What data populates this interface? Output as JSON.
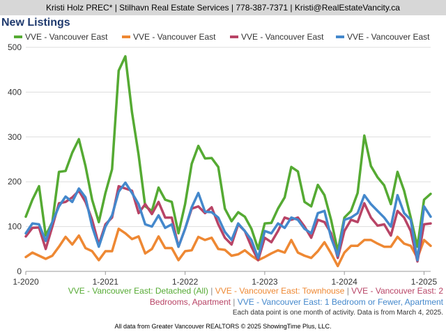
{
  "header": {
    "contact": "Kristi Holz PREC* | Stilhavn Real Estate Services | 778-387-7371 | Kristi@RealEstateVancity.ca"
  },
  "footer": {
    "note": "Each data point is one month of activity. Data is from March 4, 2025.",
    "credit": "All data from Greater Vancouver REALTORS © 2025 ShowingTime Plus, LLC.",
    "desc_line1": [
      {
        "text": "VVE - Vancouver East: Detached (All)",
        "color": "#55aa33"
      },
      {
        "text": " | ",
        "color": "#888888"
      },
      {
        "text": "VVE - Vancouver East: Townhouse",
        "color": "#ee8833"
      },
      {
        "text": " | ",
        "color": "#888888"
      },
      {
        "text": "VVE - Vancouver East: 2",
        "color": "#b84466"
      }
    ],
    "desc_line2": [
      {
        "text": "Bedrooms, Apartment",
        "color": "#b84466"
      },
      {
        "text": " | ",
        "color": "#888888"
      },
      {
        "text": "VVE - Vancouver East: 1 Bedroom or Fewer, Apartment",
        "color": "#4488cc"
      }
    ]
  },
  "chart_data": {
    "type": "line",
    "title": "New Listings",
    "xlabel": "",
    "ylabel": "",
    "ylim": [
      0,
      500
    ],
    "yticks": [
      0,
      100,
      200,
      300,
      400,
      500
    ],
    "x_start": "2020-01",
    "xticks": [
      {
        "label": "1-2020",
        "index": 0
      },
      {
        "label": "1-2021",
        "index": 12
      },
      {
        "label": "1-2022",
        "index": 24
      },
      {
        "label": "1-2023",
        "index": 36
      },
      {
        "label": "1-2024",
        "index": 48
      },
      {
        "label": "1-2025",
        "index": 60
      }
    ],
    "grid": true,
    "legend": "top",
    "series": [
      {
        "name": "VVE - Vancouver East",
        "color": "#55aa33",
        "values": [
          122,
          160,
          190,
          80,
          110,
          222,
          224,
          265,
          295,
          235,
          160,
          110,
          175,
          228,
          448,
          480,
          355,
          260,
          145,
          135,
          187,
          160,
          155,
          85,
          150,
          240,
          280,
          252,
          253,
          233,
          140,
          112,
          132,
          122,
          95,
          50,
          107,
          108,
          140,
          165,
          233,
          223,
          155,
          145,
          193,
          170,
          115,
          45,
          120,
          135,
          175,
          303,
          235,
          210,
          192,
          150,
          222,
          180,
          120,
          55,
          160,
          173
        ]
      },
      {
        "name": "VVE - Vancouver East",
        "color": "#ee8833",
        "values": [
          32,
          42,
          35,
          28,
          35,
          55,
          77,
          60,
          80,
          52,
          45,
          25,
          45,
          45,
          95,
          85,
          72,
          78,
          40,
          50,
          78,
          52,
          52,
          25,
          45,
          47,
          77,
          70,
          75,
          50,
          48,
          35,
          38,
          47,
          35,
          25,
          32,
          40,
          47,
          42,
          70,
          42,
          35,
          30,
          45,
          65,
          40,
          12,
          42,
          57,
          57,
          70,
          70,
          62,
          55,
          55,
          77,
          62,
          57,
          30,
          70,
          57
        ]
      },
      {
        "name": "VVE - Vancouver East",
        "color": "#b84466",
        "values": [
          78,
          97,
          98,
          50,
          100,
          152,
          155,
          165,
          180,
          155,
          115,
          60,
          105,
          120,
          190,
          185,
          180,
          130,
          150,
          128,
          155,
          120,
          120,
          55,
          95,
          140,
          145,
          130,
          143,
          105,
          75,
          60,
          105,
          90,
          55,
          25,
          75,
          65,
          90,
          120,
          115,
          120,
          100,
          75,
          115,
          110,
          85,
          30,
          90,
          115,
          110,
          152,
          120,
          102,
          105,
          80,
          135,
          120,
          90,
          22,
          105,
          107
        ]
      },
      {
        "name": "VVE - Vancouver East",
        "color": "#4488cc",
        "values": [
          85,
          107,
          105,
          68,
          110,
          145,
          167,
          155,
          185,
          165,
          100,
          55,
          100,
          125,
          178,
          198,
          175,
          150,
          105,
          100,
          125,
          97,
          105,
          55,
          95,
          143,
          175,
          133,
          132,
          120,
          88,
          70,
          107,
          90,
          70,
          30,
          90,
          85,
          107,
          97,
          120,
          115,
          95,
          85,
          130,
          135,
          75,
          35,
          115,
          120,
          130,
          170,
          150,
          135,
          120,
          100,
          170,
          130,
          115,
          25,
          145,
          122
        ]
      }
    ]
  }
}
